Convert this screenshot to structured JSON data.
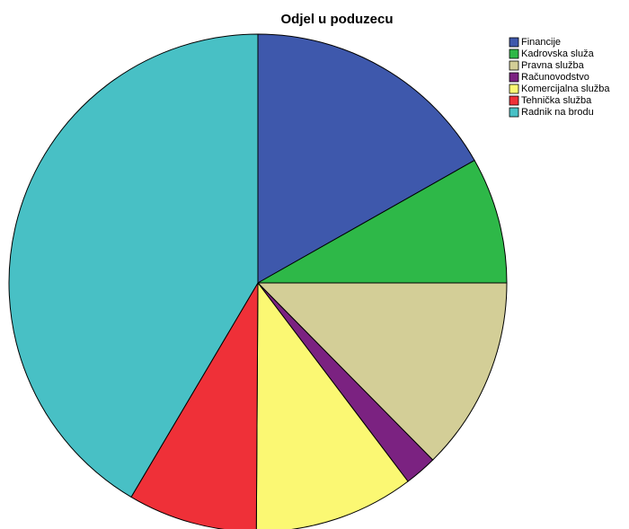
{
  "chart_data": {
    "type": "pie",
    "title": "Odjel u poduzecu",
    "categories": [
      "Financije",
      "Kadrovska služa",
      "Pravna služba",
      "Računovodstvo",
      "Komercijalna služba",
      "Tehnička služba",
      "Radnik na brodu"
    ],
    "values": [
      16.8,
      8.2,
      12.6,
      2.1,
      10.4,
      8.4,
      41.5
    ],
    "colors": [
      "#3e58ac",
      "#2eb848",
      "#d3ce97",
      "#7b2281",
      "#fbf873",
      "#ef3038",
      "#48c0c5"
    ],
    "legend": "top-right"
  }
}
